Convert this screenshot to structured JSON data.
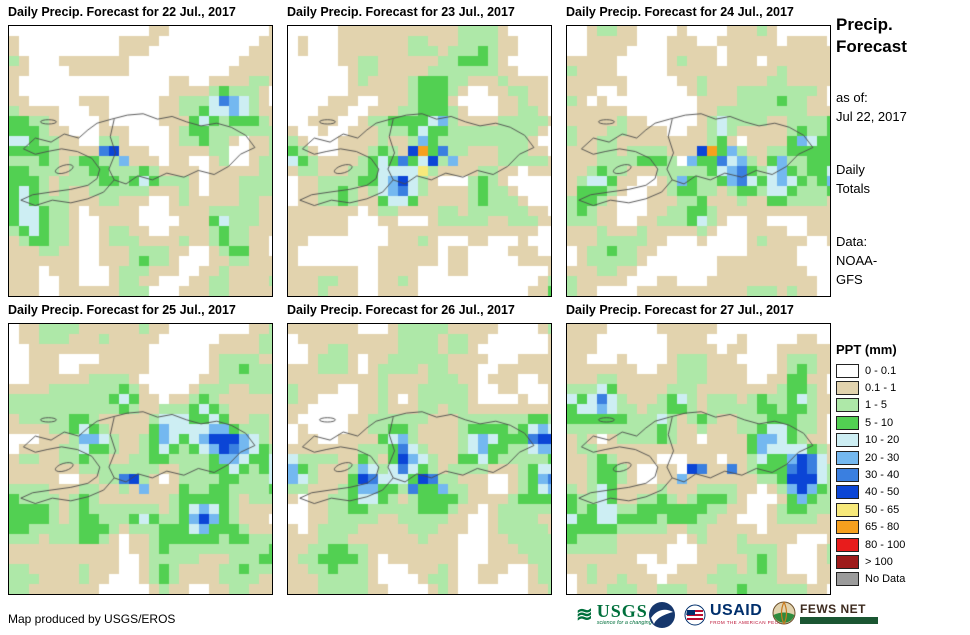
{
  "panels": [
    {
      "title": "Daily Precip. Forecast for 22 Jul., 2017"
    },
    {
      "title": "Daily Precip. Forecast for 23 Jul., 2017"
    },
    {
      "title": "Daily Precip. Forecast for 24 Jul., 2017"
    },
    {
      "title": "Daily Precip. Forecast for 25 Jul., 2017"
    },
    {
      "title": "Daily Precip. Forecast for 26 Jul., 2017"
    },
    {
      "title": "Daily Precip. Forecast for 27 Jul., 2017"
    }
  ],
  "sidebar": {
    "title_line1": "Precip.",
    "title_line2": "Forecast",
    "asof_label": "as of:",
    "asof_date": "Jul 22, 2017",
    "totals_line1": "Daily",
    "totals_line2": "Totals",
    "data_label": "Data:",
    "data_source_line1": "NOAA-",
    "data_source_line2": "GFS",
    "legend_title": "PPT (mm)",
    "legend": [
      {
        "label": "0 - 0.1",
        "color": "#ffffff"
      },
      {
        "label": "0.1 - 1",
        "color": "#e2d3ae"
      },
      {
        "label": "1 - 5",
        "color": "#aee8a8"
      },
      {
        "label": "5 - 10",
        "color": "#52d052"
      },
      {
        "label": "10 - 20",
        "color": "#cdeef3"
      },
      {
        "label": "20 - 30",
        "color": "#74b8f0"
      },
      {
        "label": "30 - 40",
        "color": "#3a7fe0"
      },
      {
        "label": "40 - 50",
        "color": "#0b45d6"
      },
      {
        "label": "50 - 65",
        "color": "#f7e97b"
      },
      {
        "label": "65 - 80",
        "color": "#f6a01e"
      },
      {
        "label": "80 - 100",
        "color": "#e81c1c"
      },
      {
        "label": "> 100",
        "color": "#9e1a1a"
      },
      {
        "label": "No Data",
        "color": "#9b9b9b"
      }
    ]
  },
  "footer": {
    "credit": "Map produced by USGS/EROS",
    "logos": {
      "usgs": {
        "label": "USGS",
        "tagline": "science for a changing world"
      },
      "usaid": {
        "label": "USAID",
        "tagline": "FROM THE AMERICAN PEOPLE"
      },
      "fewsnet": {
        "label": "FEWS NET"
      }
    }
  }
}
